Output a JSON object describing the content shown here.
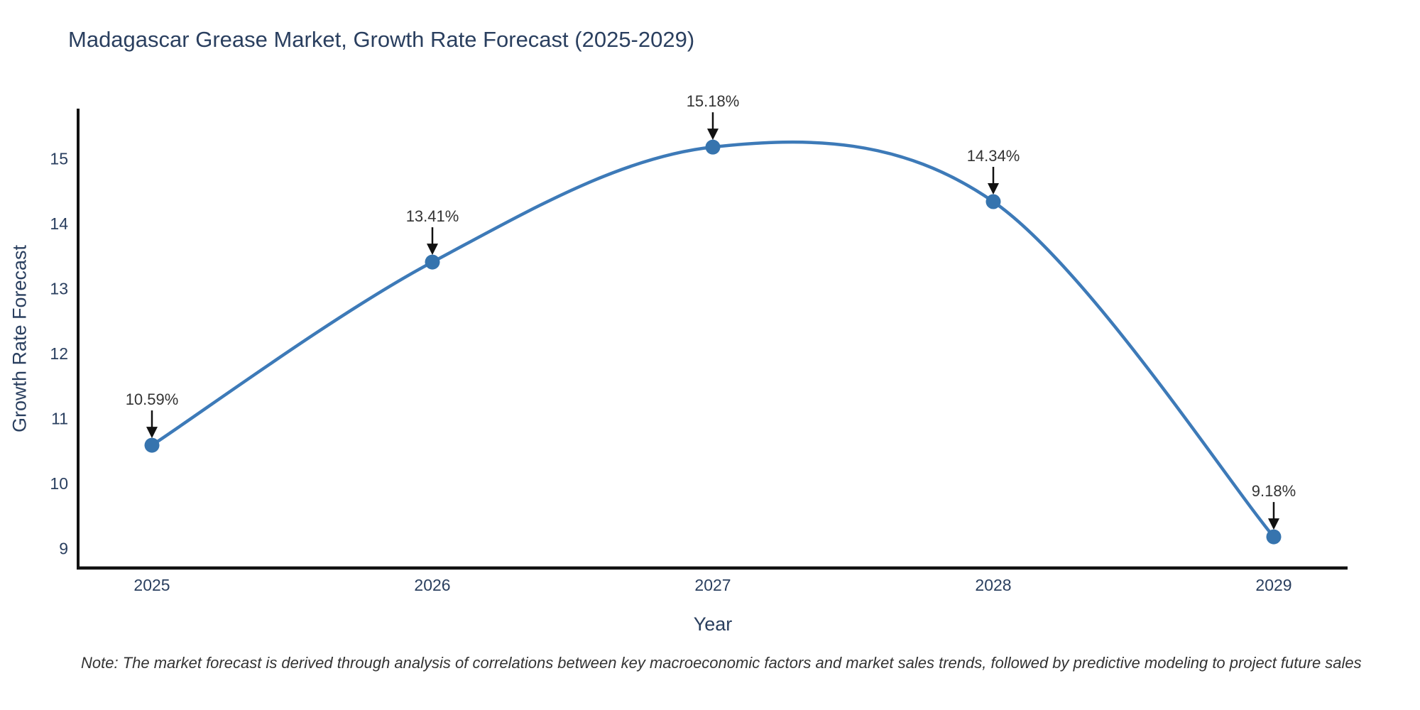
{
  "chart_data": {
    "type": "line",
    "title": "Madagascar Grease Market, Growth Rate Forecast (2025-2029)",
    "xlabel": "Year",
    "ylabel": "Growth Rate Forecast",
    "categories": [
      "2025",
      "2026",
      "2027",
      "2028",
      "2029"
    ],
    "series": [
      {
        "name": "Growth Rate Forecast",
        "values": [
          10.59,
          13.41,
          15.18,
          14.34,
          9.18
        ],
        "point_labels": [
          "10.59%",
          "13.41%",
          "15.18%",
          "14.34%",
          "9.18%"
        ]
      }
    ],
    "line_shape": "spline",
    "markers": true,
    "annotations_with_arrows": true,
    "yticks": [
      9,
      10,
      11,
      12,
      13,
      14,
      15
    ],
    "ylim": [
      8.7,
      15.75
    ],
    "grid": false,
    "legend_position": "none",
    "colors": {
      "line": "#3d7ab8",
      "marker": "#3674ae",
      "axis_line": "#111111",
      "tick_text": "#2a3f5f",
      "title_text": "#2a3f5f",
      "annotation_text": "#333333",
      "arrow": "#111111",
      "background": "#ffffff"
    },
    "note": "Note: The market forecast is derived through analysis of correlations between key macroeconomic factors and market sales trends, followed by predictive modeling to project future sales"
  }
}
